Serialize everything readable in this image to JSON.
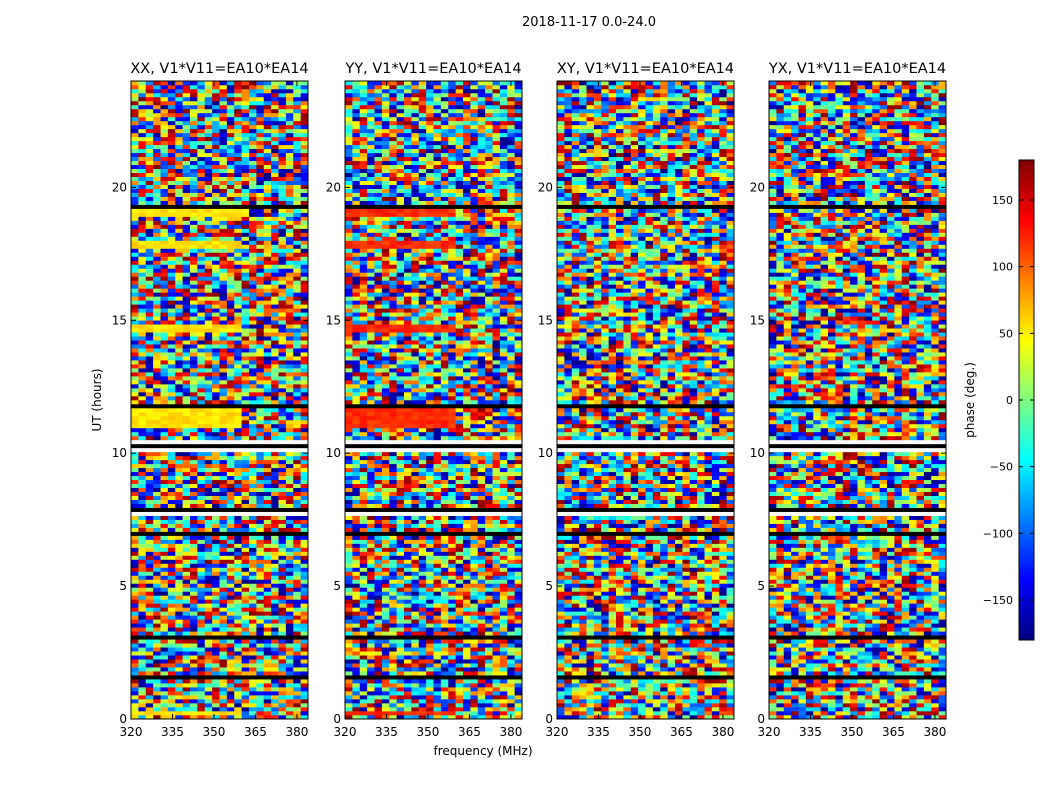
{
  "figure_title": "2018-11-17 0.0-24.0",
  "chart_data": {
    "type": "heatmap",
    "suptitle": "2018-11-17 0.0-24.0",
    "xlabel": "frequency (MHz)",
    "ylabel": "UT (hours)",
    "xlim": [
      320,
      384
    ],
    "ylim": [
      0,
      24
    ],
    "xticks": [
      320,
      335,
      350,
      365,
      380
    ],
    "yticks": [
      0,
      5,
      10,
      15,
      20
    ],
    "colorbar": {
      "label": "phase (deg.)",
      "range": [
        -180,
        180
      ],
      "ticks": [
        150,
        100,
        50,
        0,
        -50,
        -100,
        -150
      ],
      "tick_labels": [
        "150",
        "100",
        "50",
        "0",
        "−50",
        "−100",
        "−150"
      ],
      "colormap": "jet",
      "colors": [
        "#00007f",
        "#0000ff",
        "#007fff",
        "#00ffff",
        "#7fff7f",
        "#ffff00",
        "#ff7f00",
        "#ff0000",
        "#7f0000"
      ]
    },
    "panels": [
      {
        "title": "XX, V1*V11=EA10*EA14",
        "pol": "XX",
        "baseline": "V1*V11",
        "antennas": "EA10*EA14",
        "coherent_phase": 55
      },
      {
        "title": "YY, V1*V11=EA10*EA14",
        "pol": "YY",
        "baseline": "V1*V11",
        "antennas": "EA10*EA14",
        "coherent_phase": 120
      },
      {
        "title": "XY, V1*V11=EA10*EA14",
        "pol": "XY",
        "baseline": "V1*V11",
        "antennas": "EA10*EA14",
        "coherent_phase": null
      },
      {
        "title": "YX, V1*V11=EA10*EA14",
        "pol": "YX",
        "baseline": "V1*V11",
        "antennas": "EA10*EA14",
        "coherent_phase": null
      }
    ],
    "flagged_hours": [
      [
        10.05,
        10.5
      ],
      [
        7.65,
        7.95
      ],
      [
        1.45,
        1.7
      ],
      [
        11.7,
        11.9
      ],
      [
        19.15,
        19.3
      ],
      [
        18.1,
        18.2
      ],
      [
        16.3,
        16.4
      ],
      [
        15.25,
        15.32
      ],
      [
        6.95,
        7.05
      ],
      [
        3.05,
        3.12
      ]
    ],
    "coherent_hours_XX_YY": [
      [
        18.9,
        19.15
      ],
      [
        17.75,
        18.05
      ],
      [
        14.6,
        14.85
      ],
      [
        11.0,
        11.7
      ],
      [
        0.1,
        0.3
      ]
    ]
  }
}
